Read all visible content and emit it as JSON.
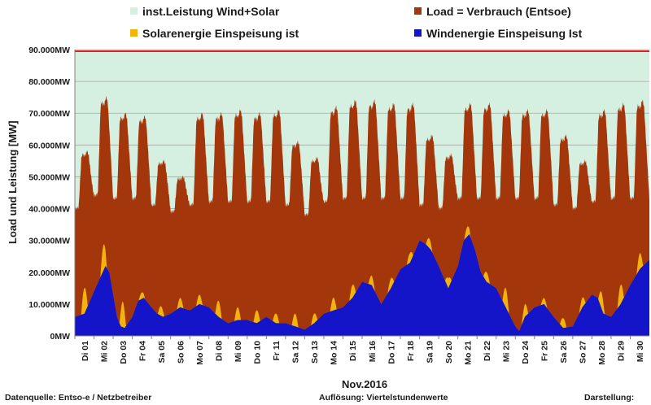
{
  "chart_data": {
    "type": "area",
    "title": "",
    "xlabel": "Nov.2016",
    "ylabel": "Load und Leistung  [MW]",
    "ylim": [
      0,
      90000
    ],
    "yticks": [
      0,
      10000,
      20000,
      30000,
      40000,
      50000,
      60000,
      70000,
      80000,
      90000
    ],
    "ytick_labels": [
      "0MW",
      "10.000MW",
      "20.000MW",
      "30.000MW",
      "40.000MW",
      "50.000MW",
      "60.000MW",
      "70.000MW",
      "80.000MW",
      "90.000MW"
    ],
    "x_labels": [
      "Di 01",
      "Mi 02",
      "Do 03",
      "Fr 04",
      "Sa 05",
      "So 06",
      "Mo 07",
      "Di 08",
      "Mi 09",
      "Do 10",
      "Fr 11",
      "Sa 12",
      "So 13",
      "Mo 14",
      "Di 15",
      "Mi 16",
      "Do 17",
      "Fr 18",
      "Sa 19",
      "So 20",
      "Mo 21",
      "Di 22",
      "Mi 23",
      "Do 24",
      "Fr 25",
      "Sa 26",
      "So 27",
      "Mo 28",
      "Di 29",
      "Mi 30"
    ],
    "x_days": 30,
    "grid": true,
    "legend_position": "top",
    "series": [
      {
        "name": "inst.Leistung Wind+Solar",
        "color": "#d5f0e0",
        "constant": 89500
      },
      {
        "name": "Load =  Verbrauch (Entsoe)",
        "color": "#a3360a",
        "daily_peak": [
          58000,
          75000,
          70000,
          69000,
          55000,
          50000,
          70000,
          70000,
          71000,
          70000,
          71000,
          61000,
          56000,
          72000,
          74000,
          74000,
          73000,
          73000,
          63000,
          57000,
          73000,
          73000,
          71000,
          71000,
          71000,
          63000,
          55000,
          71000,
          73000,
          74000
        ],
        "daily_min": [
          40000,
          44000,
          43000,
          43000,
          41000,
          39000,
          41000,
          42000,
          42000,
          42000,
          42000,
          41000,
          38000,
          42000,
          43000,
          43000,
          43000,
          43000,
          41000,
          40000,
          43000,
          43000,
          43000,
          43000,
          43000,
          41000,
          40000,
          42000,
          43000,
          43000
        ]
      },
      {
        "name": "Solarenergie Einspeisung ist",
        "color": "#f2b40c",
        "daily_peak": [
          8000,
          8000,
          8000,
          2000,
          3000,
          3000,
          3000,
          5000,
          4000,
          4000,
          3000,
          4000,
          3000,
          4000,
          4000,
          3000,
          3000,
          3000,
          3000,
          3000,
          3000,
          3000,
          6000,
          4000,
          2000,
          3000,
          3000,
          5000,
          6000,
          5000
        ]
      },
      {
        "name": "Windenergie Einspeisung Ist",
        "color": "#1414c8",
        "points": [
          [
            0,
            6000
          ],
          [
            0.5,
            7000
          ],
          [
            1,
            14000
          ],
          [
            1.3,
            18000
          ],
          [
            1.6,
            22000
          ],
          [
            1.8,
            20000
          ],
          [
            2,
            13000
          ],
          [
            2.2,
            6000
          ],
          [
            2.4,
            3000
          ],
          [
            2.6,
            2500
          ],
          [
            3,
            6000
          ],
          [
            3.3,
            11000
          ],
          [
            3.6,
            12000
          ],
          [
            4,
            9000
          ],
          [
            4.3,
            7000
          ],
          [
            4.6,
            6000
          ],
          [
            5,
            7000
          ],
          [
            5.5,
            9000
          ],
          [
            6,
            8000
          ],
          [
            6.5,
            10000
          ],
          [
            7,
            9000
          ],
          [
            7.5,
            6000
          ],
          [
            8,
            4000
          ],
          [
            8.5,
            5000
          ],
          [
            9,
            5000
          ],
          [
            9.5,
            4000
          ],
          [
            10,
            6000
          ],
          [
            10.5,
            4000
          ],
          [
            11,
            4000
          ],
          [
            11.5,
            3000
          ],
          [
            12,
            2000
          ],
          [
            12.5,
            4000
          ],
          [
            13,
            7000
          ],
          [
            13.5,
            8000
          ],
          [
            14,
            9000
          ],
          [
            14.5,
            12000
          ],
          [
            15,
            17000
          ],
          [
            15.5,
            16000
          ],
          [
            16,
            10000
          ],
          [
            16.5,
            15000
          ],
          [
            17,
            21000
          ],
          [
            17.5,
            23000
          ],
          [
            18,
            30000
          ],
          [
            18.3,
            29000
          ],
          [
            18.6,
            27000
          ],
          [
            19,
            22000
          ],
          [
            19.5,
            15000
          ],
          [
            20,
            22000
          ],
          [
            20.3,
            30000
          ],
          [
            20.6,
            32000
          ],
          [
            20.9,
            27000
          ],
          [
            21.2,
            20000
          ],
          [
            21.5,
            17000
          ],
          [
            22,
            15000
          ],
          [
            22.5,
            9000
          ],
          [
            23,
            3000
          ],
          [
            23.2,
            1500
          ],
          [
            23.5,
            6000
          ],
          [
            24,
            9000
          ],
          [
            24.5,
            10000
          ],
          [
            25,
            6000
          ],
          [
            25.5,
            2500
          ],
          [
            26,
            3000
          ],
          [
            26.5,
            9000
          ],
          [
            27,
            13000
          ],
          [
            27.3,
            12000
          ],
          [
            27.6,
            7000
          ],
          [
            28,
            6000
          ],
          [
            28.5,
            10000
          ],
          [
            29,
            16000
          ],
          [
            29.5,
            21000
          ],
          [
            30,
            24000
          ]
        ]
      }
    ],
    "reference_line": {
      "value": 89500,
      "color": "#e02020"
    }
  },
  "footer": {
    "source": "Datenquelle:  Entso-e  / Netzbetreiber",
    "resolution": "Auflösung: Viertelstundenwerte",
    "display": "Darstellung:"
  }
}
